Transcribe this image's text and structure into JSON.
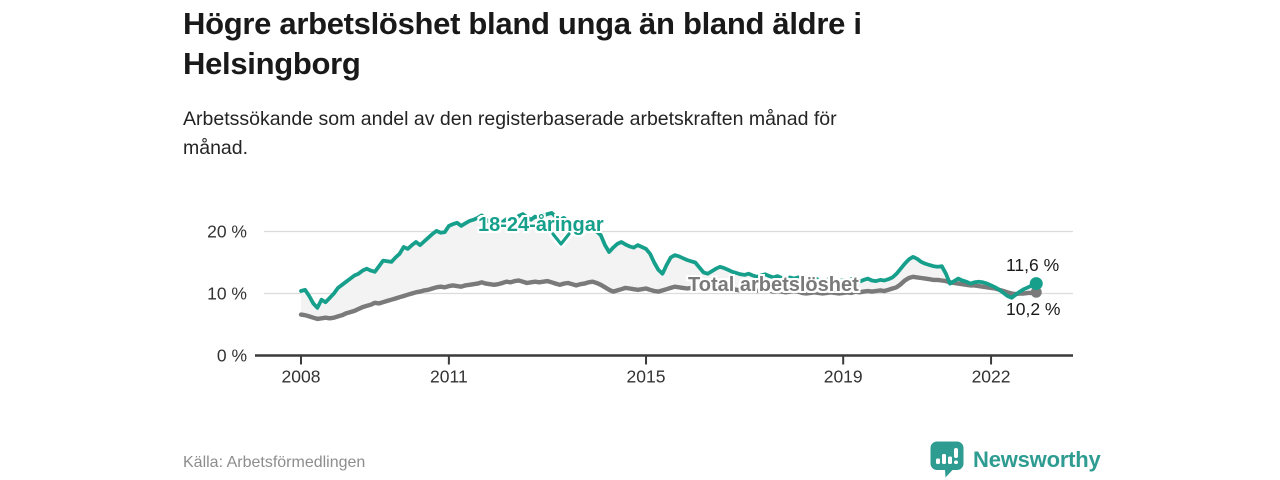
{
  "header": {
    "title": "Högre arbetslöshet bland unga än bland äldre i\nHelsingborg",
    "subtitle": "Arbetssökande som andel av den registerbaserade arbetskraften månad för\nmånad."
  },
  "footer": {
    "source": "Källa: Arbetsförmedlingen",
    "brand": "Newsworthy"
  },
  "colors": {
    "young": "#16a08c",
    "total": "#7a7a7a",
    "area_fill": "#f3f3f3",
    "grid": "#dcdcdc",
    "axis": "#3a3a3a",
    "brand_teal": "#2f9c92",
    "end_label": "#1a1a1a"
  },
  "chart_data": {
    "type": "line",
    "title": "Högre arbetslöshet bland unga än bland äldre i Helsingborg",
    "subtitle": "Arbetssökande som andel av den registerbaserade arbetskraften månad för månad.",
    "unit": "%",
    "x_unit": "month",
    "x_start": "2008-01",
    "x_end": "2022-12",
    "grid": "horizontal",
    "legend_position": "inline-labels",
    "ylim": [
      0,
      26.5
    ],
    "x_ticks": [
      {
        "year": 2008,
        "label": "2008"
      },
      {
        "year": 2011,
        "label": "2011"
      },
      {
        "year": 2015,
        "label": "2015"
      },
      {
        "year": 2019,
        "label": "2019"
      },
      {
        "year": 2022,
        "label": "2022"
      }
    ],
    "y_ticks": [
      {
        "value": 0,
        "label": "0 %"
      },
      {
        "value": 10,
        "label": "10 %"
      },
      {
        "value": 20,
        "label": "20 %"
      }
    ],
    "series": [
      {
        "name": "18-24-åringar",
        "color": "#16a08c",
        "end_label": "11,6 %",
        "end_value": 11.6,
        "values": [
          10.4,
          10.6,
          9.6,
          8.4,
          7.7,
          9.0,
          8.6,
          9.3,
          10.0,
          10.9,
          11.4,
          11.9,
          12.4,
          12.9,
          13.2,
          13.7,
          14.0,
          13.7,
          13.5,
          14.4,
          15.3,
          15.2,
          15.1,
          15.8,
          16.4,
          17.5,
          17.2,
          17.8,
          18.3,
          17.8,
          18.4,
          19.0,
          19.6,
          20.1,
          19.8,
          19.9,
          20.9,
          21.2,
          21.4,
          20.9,
          21.3,
          21.7,
          21.9,
          22.2,
          22.6,
          22.0,
          21.5,
          21.1,
          21.0,
          21.5,
          22.0,
          22.3,
          21.8,
          22.5,
          22.8,
          22.3,
          21.9,
          22.4,
          22.0,
          22.6,
          22.8,
          23.0,
          22.4,
          21.9,
          22.2,
          21.6,
          21.2,
          21.6,
          21.0,
          20.5,
          20.8,
          20.2,
          20.0,
          19.4,
          17.8,
          16.7,
          17.4,
          18.0,
          18.3,
          17.9,
          17.6,
          17.4,
          17.8,
          17.5,
          17.2,
          16.4,
          15.0,
          13.8,
          13.2,
          14.6,
          15.8,
          16.2,
          16.0,
          15.7,
          15.4,
          15.2,
          15.0,
          14.2,
          13.4,
          13.2,
          13.6,
          14.0,
          14.3,
          14.1,
          13.8,
          13.5,
          13.3,
          13.1,
          13.0,
          13.2,
          12.9,
          12.7,
          12.9,
          13.1,
          12.8,
          12.6,
          12.8,
          12.5,
          12.4,
          12.6,
          12.4,
          12.6,
          12.3,
          12.1,
          12.3,
          12.5,
          12.2,
          12.0,
          12.2,
          12.4,
          12.1,
          12.0,
          12.2,
          12.0,
          12.3,
          12.1,
          11.9,
          12.2,
          12.4,
          12.1,
          12.0,
          12.2,
          12.1,
          12.3,
          12.6,
          13.2,
          14.0,
          14.8,
          15.5,
          15.9,
          15.6,
          15.1,
          14.8,
          14.6,
          14.4,
          14.3,
          14.4,
          13.2,
          11.6,
          12.0,
          12.4,
          12.1,
          11.9,
          11.6,
          11.8,
          11.9,
          11.8,
          11.6,
          11.3,
          11.0,
          10.6,
          10.1,
          9.6,
          9.3,
          9.8,
          10.3,
          10.7,
          11.0,
          11.3,
          11.6
        ]
      },
      {
        "name": "Total arbetslöshet",
        "color": "#7a7a7a",
        "end_label": "10,2 %",
        "end_value": 10.2,
        "values": [
          6.6,
          6.5,
          6.3,
          6.1,
          5.9,
          6.0,
          6.1,
          6.0,
          6.1,
          6.3,
          6.5,
          6.8,
          7.0,
          7.2,
          7.5,
          7.8,
          8.0,
          8.2,
          8.5,
          8.4,
          8.6,
          8.8,
          9.0,
          9.2,
          9.4,
          9.6,
          9.8,
          10.0,
          10.2,
          10.3,
          10.5,
          10.6,
          10.8,
          11.0,
          11.1,
          11.0,
          11.2,
          11.3,
          11.2,
          11.1,
          11.3,
          11.4,
          11.5,
          11.6,
          11.8,
          11.6,
          11.5,
          11.4,
          11.5,
          11.7,
          11.9,
          11.8,
          12.0,
          12.1,
          11.9,
          11.7,
          11.8,
          11.9,
          11.8,
          11.9,
          12.0,
          11.8,
          11.6,
          11.4,
          11.6,
          11.7,
          11.5,
          11.3,
          11.5,
          11.6,
          11.8,
          11.9,
          11.7,
          11.4,
          11.0,
          10.6,
          10.3,
          10.5,
          10.7,
          10.9,
          10.8,
          10.7,
          10.6,
          10.7,
          10.8,
          10.6,
          10.4,
          10.3,
          10.5,
          10.7,
          10.9,
          11.1,
          11.0,
          10.9,
          10.8,
          10.9,
          11.0,
          10.9,
          10.7,
          10.6,
          10.7,
          10.9,
          11.0,
          10.9,
          10.8,
          10.7,
          10.6,
          10.5,
          10.6,
          10.7,
          10.5,
          10.4,
          10.5,
          10.6,
          10.5,
          10.3,
          10.4,
          10.3,
          10.2,
          10.3,
          10.4,
          10.3,
          10.1,
          10.0,
          10.1,
          10.2,
          10.1,
          10.0,
          10.1,
          10.2,
          10.1,
          10.0,
          10.1,
          10.2,
          10.1,
          10.3,
          10.2,
          10.3,
          10.4,
          10.3,
          10.4,
          10.5,
          10.4,
          10.6,
          10.8,
          11.0,
          11.5,
          12.1,
          12.5,
          12.7,
          12.6,
          12.5,
          12.4,
          12.3,
          12.2,
          12.2,
          12.1,
          12.0,
          11.8,
          11.7,
          11.6,
          11.5,
          11.4,
          11.3,
          11.3,
          11.2,
          11.1,
          11.0,
          10.9,
          10.8,
          10.6,
          10.4,
          10.2,
          10.0,
          9.9,
          10.0,
          10.0,
          10.1,
          10.1,
          10.2
        ]
      }
    ]
  }
}
